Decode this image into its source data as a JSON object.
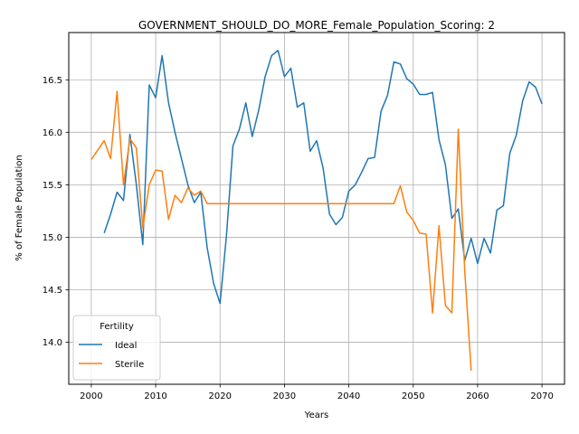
{
  "chart_data": {
    "type": "line",
    "title": "GOVERNMENT_SHOULD_DO_MORE_Female_Population_Scoring: 2",
    "xlabel": "Years",
    "ylabel": "% of Female Population",
    "xlim": [
      1996.5,
      2073.5
    ],
    "ylim": [
      13.6,
      16.95
    ],
    "xticks": [
      2000,
      2010,
      2020,
      2030,
      2040,
      2050,
      2060,
      2070
    ],
    "yticks": [
      14.0,
      14.5,
      15.0,
      15.5,
      16.0,
      16.5
    ],
    "xtick_labels": [
      "2000",
      "2010",
      "2020",
      "2030",
      "2040",
      "2050",
      "2060",
      "2070"
    ],
    "ytick_labels": [
      "14.0",
      "14.5",
      "15.0",
      "15.5",
      "16.0",
      "16.5"
    ],
    "grid": true,
    "legend": {
      "title": "Fertility",
      "position": "lower-left"
    },
    "series": [
      {
        "name": "Ideal",
        "color": "#1f77b4",
        "x": [
          2002,
          2003,
          2004,
          2005,
          2006,
          2007,
          2008,
          2009,
          2010,
          2011,
          2012,
          2013,
          2014,
          2015,
          2016,
          2017,
          2018,
          2019,
          2020,
          2021,
          2022,
          2023,
          2024,
          2025,
          2026,
          2027,
          2028,
          2029,
          2030,
          2031,
          2032,
          2033,
          2034,
          2035,
          2036,
          2037,
          2038,
          2039,
          2040,
          2041,
          2042,
          2043,
          2044,
          2045,
          2046,
          2047,
          2048,
          2049,
          2050,
          2051,
          2052,
          2053,
          2054,
          2055,
          2056,
          2057,
          2058,
          2059,
          2060,
          2061,
          2062,
          2063,
          2064,
          2065,
          2066,
          2067,
          2068,
          2069,
          2070
        ],
        "y": [
          15.04,
          15.22,
          15.43,
          15.35,
          15.98,
          15.5,
          14.93,
          16.45,
          16.33,
          16.73,
          16.28,
          16.0,
          15.75,
          15.5,
          15.33,
          15.43,
          14.9,
          14.56,
          14.37,
          15.02,
          15.87,
          16.03,
          16.28,
          15.96,
          16.21,
          16.53,
          16.73,
          16.78,
          16.53,
          16.61,
          16.24,
          16.28,
          15.82,
          15.92,
          15.66,
          15.22,
          15.12,
          15.19,
          15.44,
          15.5,
          15.62,
          15.75,
          15.76,
          16.2,
          16.35,
          16.67,
          16.65,
          16.51,
          16.46,
          16.36,
          16.36,
          16.38,
          15.93,
          15.69,
          15.18,
          15.27,
          14.78,
          14.99,
          14.75,
          14.99,
          14.85,
          15.26,
          15.3,
          15.8,
          15.97,
          16.3,
          16.48,
          16.43,
          16.27
        ]
      },
      {
        "name": "Sterile",
        "color": "#ff7f0e",
        "x": [
          2000,
          2001,
          2002,
          2003,
          2004,
          2005,
          2006,
          2007,
          2008,
          2009,
          2010,
          2011,
          2012,
          2013,
          2014,
          2015,
          2016,
          2017,
          2018,
          2019,
          2020,
          2021,
          2022,
          2023,
          2024,
          2025,
          2026,
          2027,
          2028,
          2029,
          2030,
          2031,
          2032,
          2033,
          2034,
          2035,
          2036,
          2037,
          2038,
          2039,
          2040,
          2041,
          2042,
          2043,
          2044,
          2045,
          2046,
          2047,
          2048,
          2049,
          2050,
          2051,
          2052,
          2053,
          2054,
          2055,
          2056,
          2057,
          2058,
          2059
        ],
        "y": [
          15.74,
          15.83,
          15.92,
          15.75,
          16.39,
          15.5,
          15.94,
          15.85,
          15.09,
          15.5,
          15.64,
          15.63,
          15.17,
          15.4,
          15.33,
          15.47,
          15.4,
          15.44,
          15.32,
          15.32,
          15.32,
          15.32,
          15.32,
          15.32,
          15.32,
          15.32,
          15.32,
          15.32,
          15.32,
          15.32,
          15.32,
          15.32,
          15.32,
          15.32,
          15.32,
          15.32,
          15.32,
          15.32,
          15.32,
          15.32,
          15.32,
          15.32,
          15.32,
          15.32,
          15.32,
          15.32,
          15.32,
          15.32,
          15.49,
          15.24,
          15.16,
          15.04,
          15.03,
          14.28,
          15.11,
          14.35,
          14.28,
          16.03,
          14.68,
          13.73
        ]
      }
    ]
  }
}
